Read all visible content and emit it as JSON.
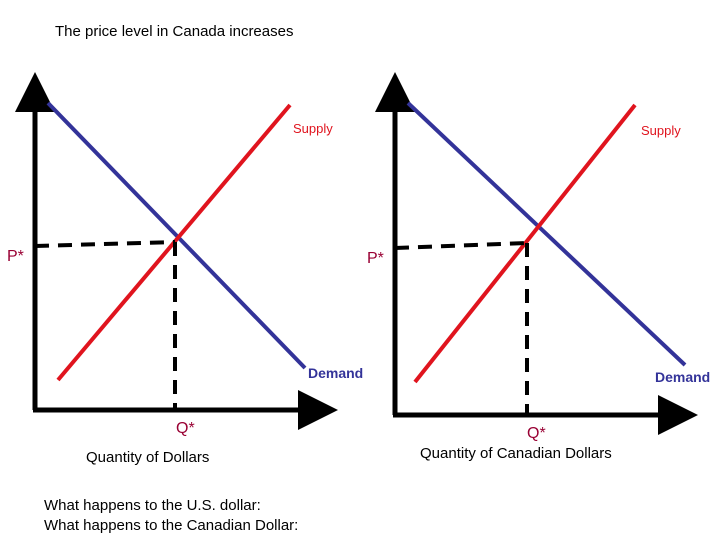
{
  "header": {
    "title": "The price level in Canada increases"
  },
  "panels": [
    {
      "supply_label": "Supply",
      "demand_label": "Demand",
      "price_label": "P*",
      "quantity_label": "Q*",
      "x_axis_label": "Quantity of Dollars"
    },
    {
      "supply_label": "Supply",
      "demand_label": "Demand",
      "price_label": "P*",
      "quantity_label": "Q*",
      "x_axis_label": "Quantity of Canadian Dollars"
    }
  ],
  "questions": [
    "What happens to the U.S. dollar:",
    "What happens to the Canadian Dollar:"
  ]
}
